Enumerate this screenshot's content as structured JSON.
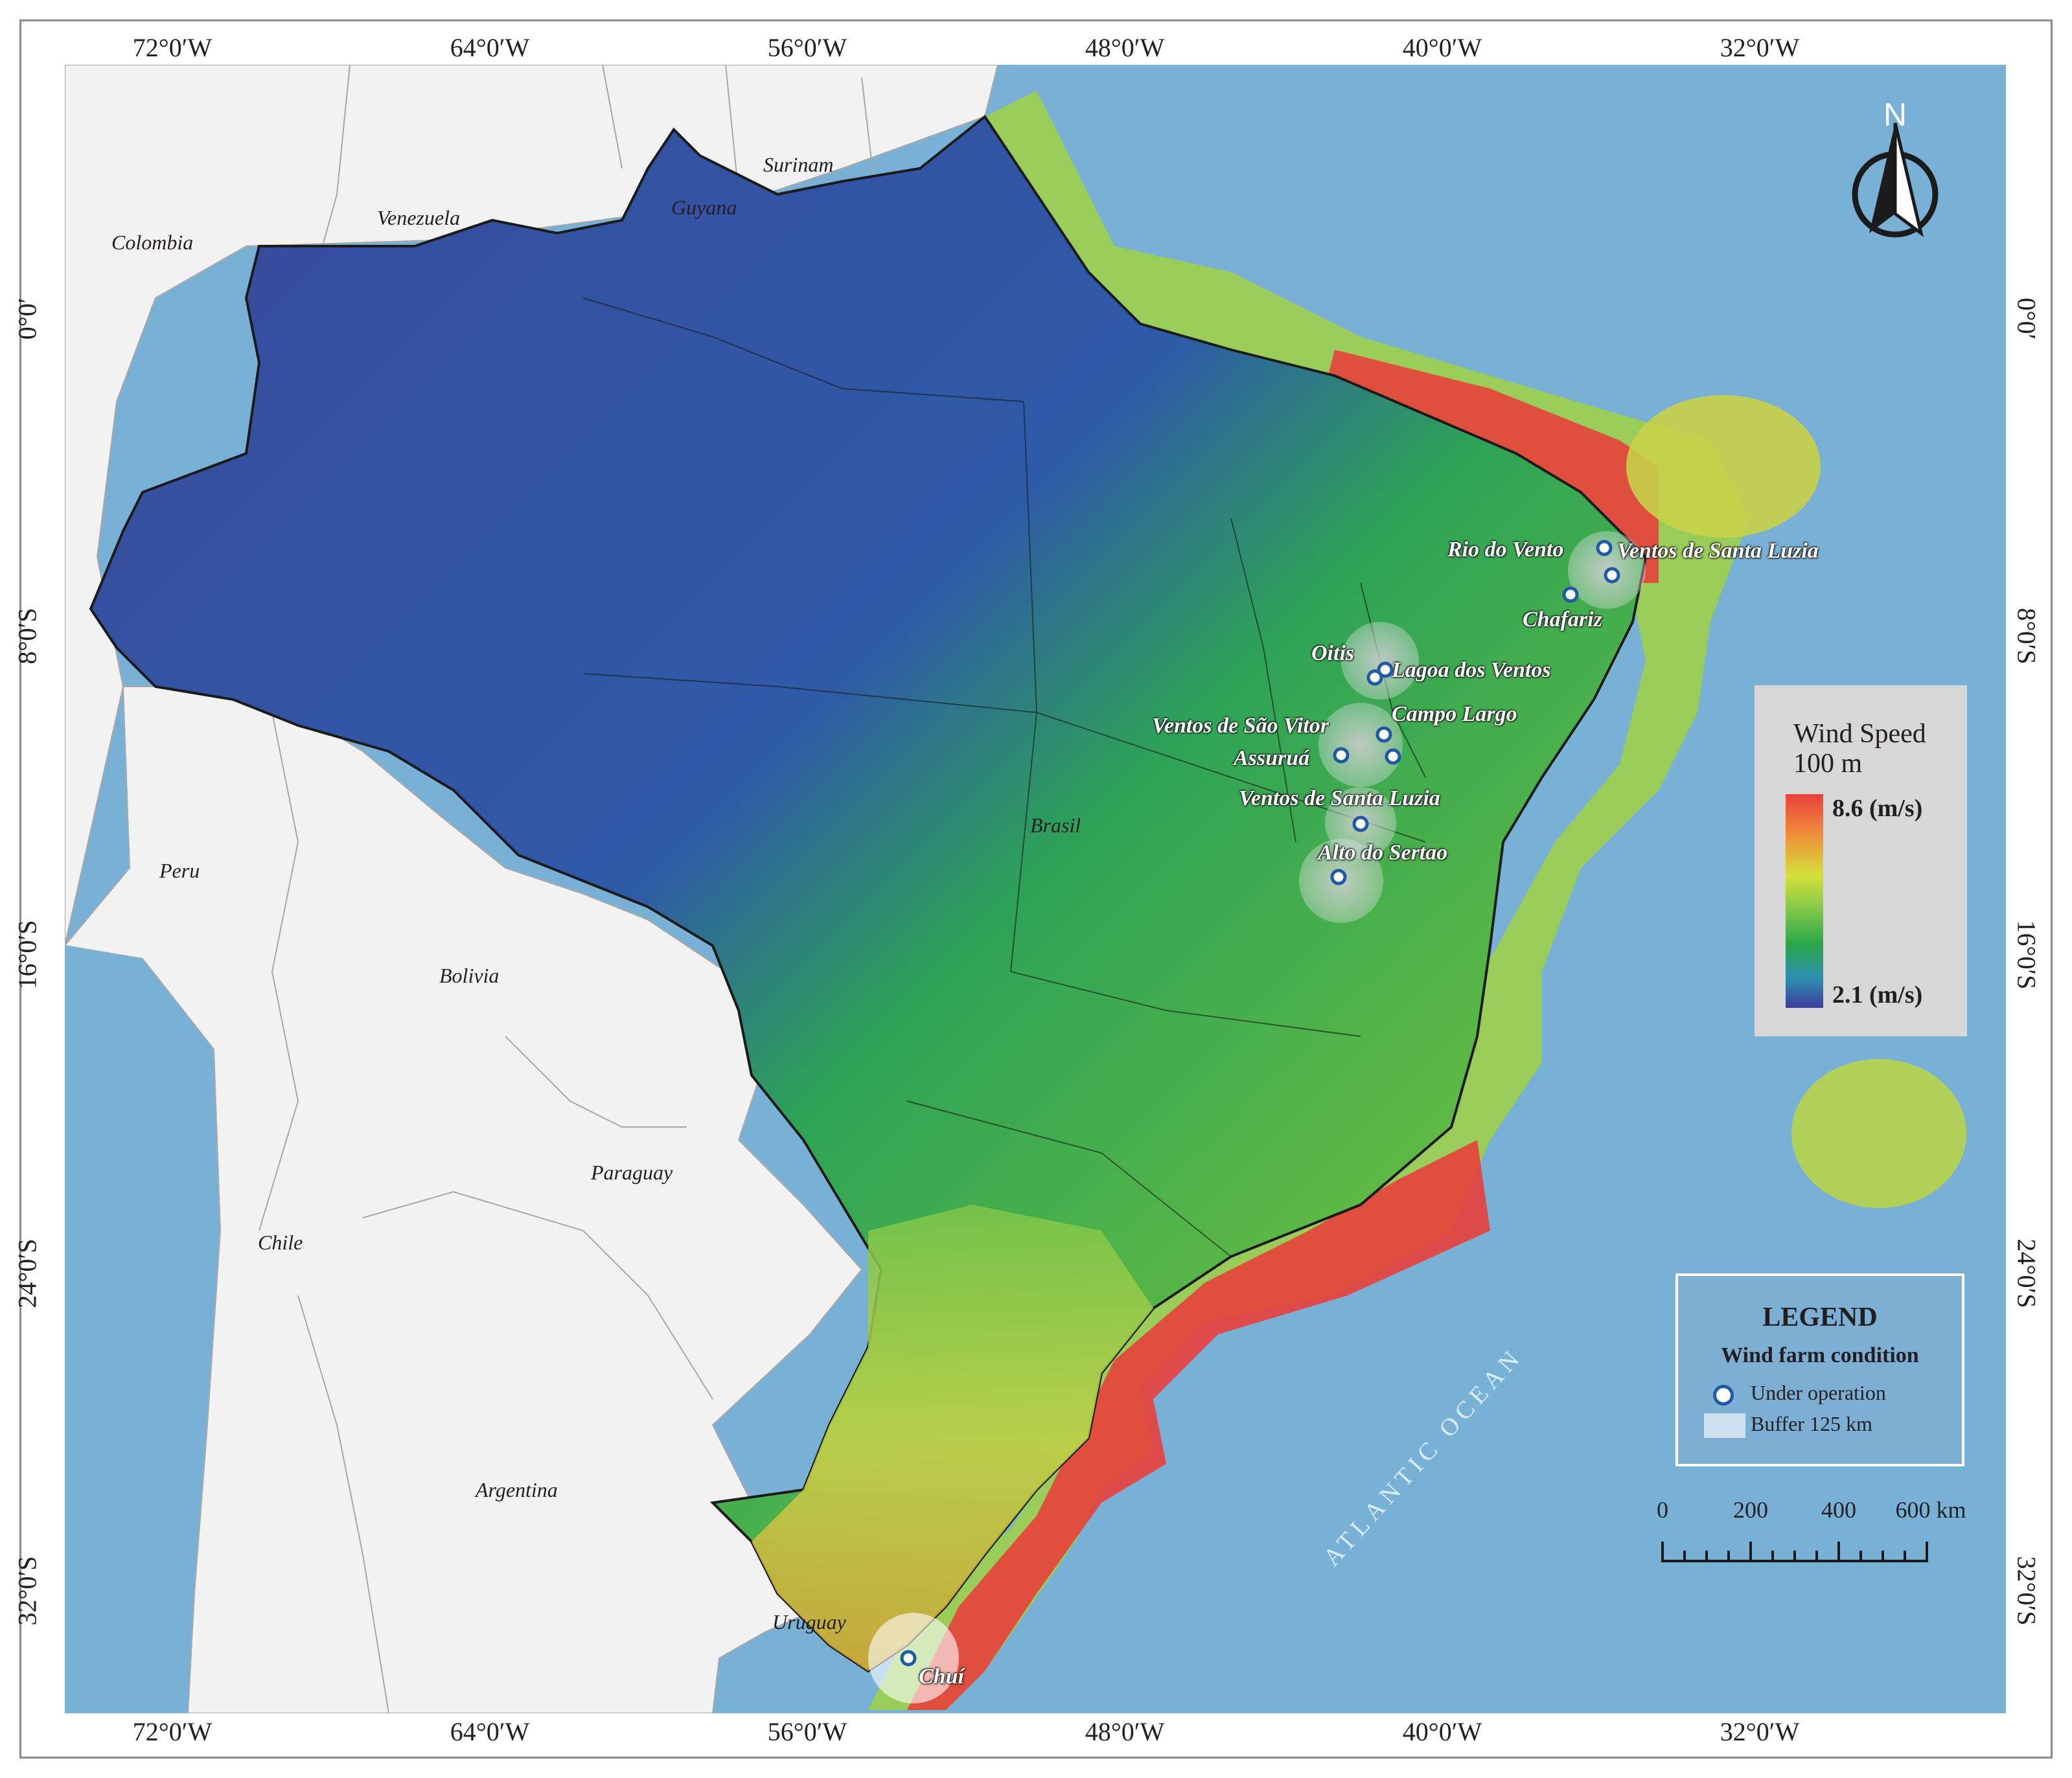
{
  "axes": {
    "longitude": [
      "72°0′W",
      "64°0′W",
      "56°0′W",
      "48°0′W",
      "40°0′W",
      "32°0′W"
    ],
    "latitude": [
      "0°0′",
      "8°0′S",
      "16°0′S",
      "24°0′S",
      "32°0′S"
    ]
  },
  "countries": {
    "colombia": "Colombia",
    "venezuela": "Venezuela",
    "guyana": "Guyana",
    "surinam": "Surinam",
    "peru": "Peru",
    "bolivia": "Bolivia",
    "paraguay": "Paraguay",
    "chile": "Chile",
    "argentina": "Argentina",
    "uruguay": "Uruguay",
    "brasil": "Brasil"
  },
  "ocean_label": "ATLANTIC OCEAN",
  "wind_farms": [
    {
      "name": "Rio do Vento"
    },
    {
      "name": "Ventos de Santa Luzia"
    },
    {
      "name": "Chafariz"
    },
    {
      "name": "Oitis"
    },
    {
      "name": "Lagoa dos Ventos"
    },
    {
      "name": "Ventos de São Vitor"
    },
    {
      "name": "Campo Largo"
    },
    {
      "name": "Assuruá"
    },
    {
      "name": "Ventos de Santa Luzia"
    },
    {
      "name": "Alto do Sertao"
    },
    {
      "name": "Chuí"
    }
  ],
  "wind_speed_legend": {
    "title_line1": "Wind Speed",
    "title_line2": "100 m",
    "max": "8.6 (m/s)",
    "min": "2.1 (m/s)"
  },
  "legend": {
    "title": "LEGEND",
    "subtitle": "Wind farm condition",
    "under_operation": "Under operation",
    "buffer": "Buffer 125 km"
  },
  "scale_bar": {
    "labels": [
      "0",
      "200",
      "400",
      "600 km"
    ]
  },
  "north_arrow": {
    "label": "N",
    "icon": "north-arrow-icon"
  },
  "colors": {
    "ocean": "#79b1d6",
    "land_other": "#f2f2f2",
    "wind_high": "#e8403c",
    "wind_low": "#3b3e9c",
    "farm_marker": "#1f5aa6"
  }
}
